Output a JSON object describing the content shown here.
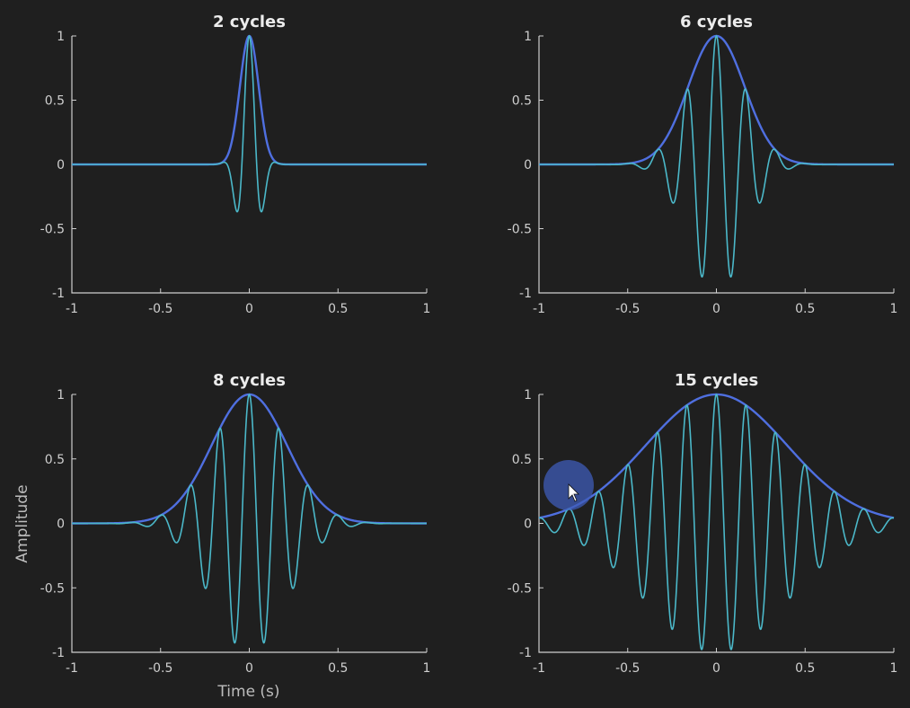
{
  "figure": {
    "xlabel": "Time (s)",
    "ylabel": "Amplitude"
  },
  "chart_data": [
    {
      "type": "line",
      "title": "2 cycles",
      "cycles": 2,
      "xlim": [
        -1,
        1
      ],
      "ylim": [
        -1,
        1
      ],
      "xticks": [
        "-1",
        "-0.5",
        "0",
        "0.5",
        "1"
      ],
      "yticks": [
        "1",
        "0.5",
        "0",
        "-0.5",
        "-1"
      ],
      "series": [
        {
          "role": "wavelet",
          "color": "#4bb8c9",
          "formula": "cos(2*pi*6*t)*exp(-t^2/(2*s^2)), s=cycles/(2*pi*6)"
        },
        {
          "role": "gaussian envelope",
          "color": "#4f6fe0",
          "formula": "exp(-t^2/(2*s^2))"
        }
      ]
    },
    {
      "type": "line",
      "title": "6 cycles",
      "cycles": 6,
      "xlim": [
        -1,
        1
      ],
      "ylim": [
        -1,
        1
      ],
      "xticks": [
        "-1",
        "-0.5",
        "0",
        "0.5",
        "1"
      ],
      "yticks": [
        "1",
        "0.5",
        "0",
        "-0.5",
        "-1"
      ],
      "series": [
        {
          "role": "wavelet",
          "color": "#4bb8c9"
        },
        {
          "role": "gaussian envelope",
          "color": "#4f6fe0"
        }
      ]
    },
    {
      "type": "line",
      "title": "8 cycles",
      "cycles": 8,
      "xlim": [
        -1,
        1
      ],
      "ylim": [
        -1,
        1
      ],
      "xticks": [
        "-1",
        "-0.5",
        "0",
        "0.5",
        "1"
      ],
      "yticks": [
        "1",
        "0.5",
        "0",
        "-0.5",
        "-1"
      ],
      "series": [
        {
          "role": "wavelet",
          "color": "#4bb8c9"
        },
        {
          "role": "gaussian envelope",
          "color": "#4f6fe0"
        }
      ]
    },
    {
      "type": "line",
      "title": "15 cycles",
      "cycles": 15,
      "xlim": [
        -1,
        1
      ],
      "ylim": [
        -1,
        1
      ],
      "xticks": [
        "-1",
        "-0.5",
        "0",
        "0.5",
        "1"
      ],
      "yticks": [
        "1",
        "0.5",
        "0",
        "-0.5",
        "-1"
      ],
      "series": [
        {
          "role": "wavelet",
          "color": "#4bb8c9"
        },
        {
          "role": "gaussian envelope",
          "color": "#4f6fe0"
        }
      ]
    }
  ],
  "wavelet_frequency_hz": 6
}
